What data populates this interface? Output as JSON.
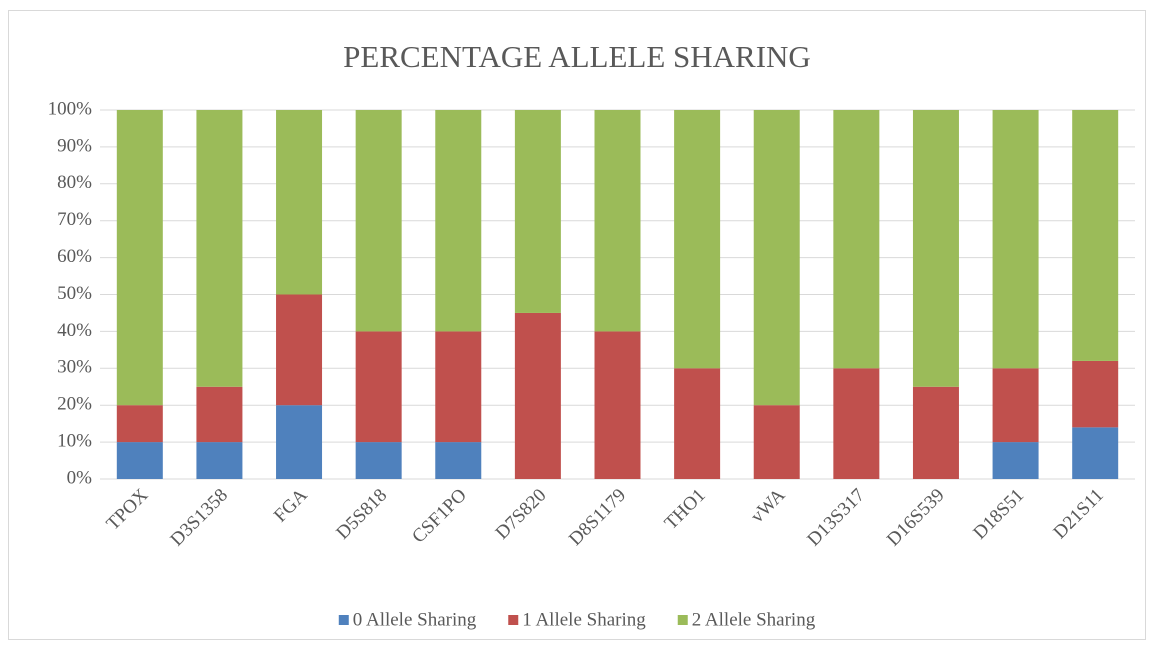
{
  "chart_data": {
    "type": "stacked_bar",
    "title": "PERCENTAGE ALLELE SHARING",
    "categories": [
      "TPOX",
      "D3S1358",
      "FGA",
      "D5S818",
      "CSF1PO",
      "D7S820",
      "D8S1179",
      "THO1",
      "vWA",
      "D13S317",
      "D16S539",
      "D18S51",
      "D21S11"
    ],
    "series": [
      {
        "name": "0 Allele Sharing",
        "color": "#4f81bd",
        "values": [
          10,
          10,
          20,
          10,
          10,
          0,
          0,
          0,
          0,
          0,
          0,
          10,
          14
        ]
      },
      {
        "name": "1 Allele Sharing",
        "color": "#c0504d",
        "values": [
          10,
          15,
          30,
          30,
          30,
          45,
          40,
          30,
          20,
          30,
          25,
          20,
          18
        ]
      },
      {
        "name": "2 Allele Sharing",
        "color": "#9bbb59",
        "values": [
          80,
          75,
          50,
          60,
          60,
          55,
          60,
          70,
          80,
          70,
          75,
          70,
          68
        ]
      }
    ],
    "ylim": [
      0,
      100
    ],
    "yticks": [
      {
        "value": 0,
        "label": "0%"
      },
      {
        "value": 10,
        "label": "10%"
      },
      {
        "value": 20,
        "label": "20%"
      },
      {
        "value": 30,
        "label": "30%"
      },
      {
        "value": 40,
        "label": "40%"
      },
      {
        "value": 50,
        "label": "50%"
      },
      {
        "value": 60,
        "label": "60%"
      },
      {
        "value": 70,
        "label": "70%"
      },
      {
        "value": 80,
        "label": "80%"
      },
      {
        "value": 90,
        "label": "90%"
      },
      {
        "value": 100,
        "label": "100%"
      }
    ],
    "grid": true,
    "legend": "bottom"
  }
}
